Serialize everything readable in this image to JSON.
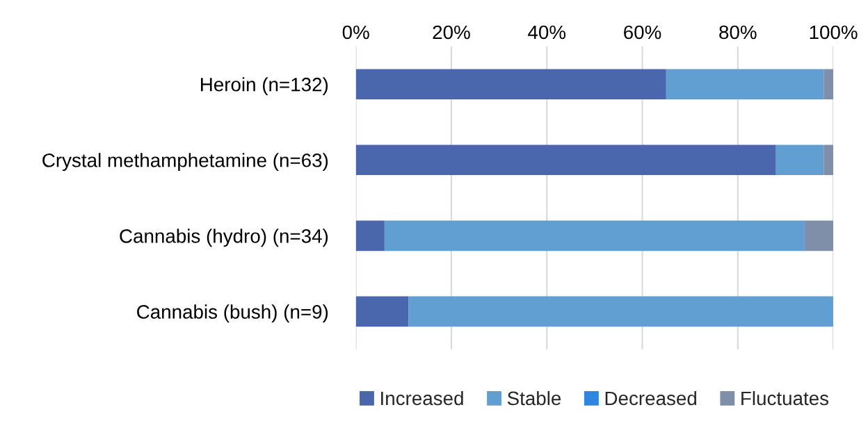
{
  "chart_data": {
    "type": "bar",
    "orientation": "horizontal",
    "stacked": true,
    "categories": [
      "Heroin (n=132)",
      "Crystal methamphetamine (n=63)",
      "Cannabis (hydro) (n=34)",
      "Cannabis (bush) (n=9)"
    ],
    "series": [
      {
        "name": "Increased",
        "color": "#4a67ad",
        "values": [
          65,
          88,
          6,
          11
        ]
      },
      {
        "name": "Stable",
        "color": "#619ed2",
        "values": [
          33,
          10,
          88,
          89
        ]
      },
      {
        "name": "Decreased",
        "color": "#2e86de",
        "values": [
          0,
          0,
          0,
          0
        ]
      },
      {
        "name": "Fluctuates",
        "color": "#7f8faa",
        "values": [
          2,
          2,
          6,
          0
        ]
      }
    ],
    "xlim": [
      0,
      100
    ],
    "xticks": [
      {
        "value": 0,
        "label": "0%"
      },
      {
        "value": 20,
        "label": "20%"
      },
      {
        "value": 40,
        "label": "40%"
      },
      {
        "value": 60,
        "label": "60%"
      },
      {
        "value": 80,
        "label": "80%"
      },
      {
        "value": 100,
        "label": "100%"
      }
    ],
    "grid": "x",
    "legend": "bottom"
  }
}
